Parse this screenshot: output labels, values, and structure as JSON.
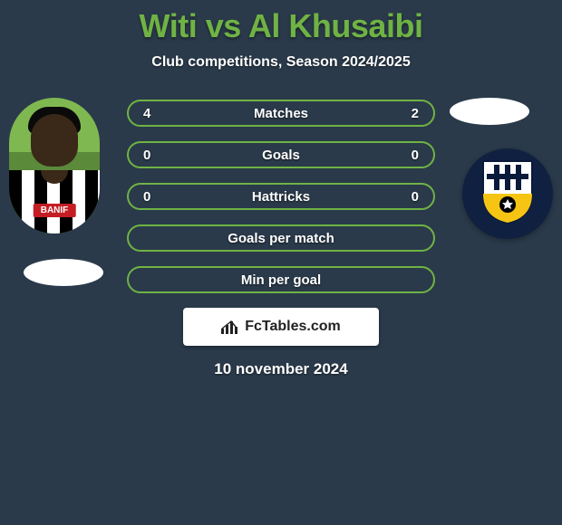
{
  "title": {
    "player_left": "Witi",
    "vs": " vs ",
    "player_right": "Al Khusaibi",
    "color": "#6fb344",
    "fontsize": 36
  },
  "subtitle": "Club competitions, Season 2024/2025",
  "stats": {
    "row_border_color": "#6fb344",
    "row_border_width": 2,
    "row_bg": "transparent",
    "rows": [
      {
        "label": "Matches",
        "left": "4",
        "right": "2"
      },
      {
        "label": "Goals",
        "left": "0",
        "right": "0"
      },
      {
        "label": "Hattricks",
        "left": "0",
        "right": "0"
      },
      {
        "label": "Goals per match",
        "left": "",
        "right": ""
      },
      {
        "label": "Min per goal",
        "left": "",
        "right": ""
      }
    ]
  },
  "left_player": {
    "jersey_sponsor": "BANIF",
    "jersey_sponsor_bg": "#c41e24",
    "pitch_top": "#7fb850",
    "pitch_bottom": "#5a8a3a",
    "skin": "#3a2818",
    "hair": "#0a0a0a"
  },
  "right_badge": {
    "bg": "#102040",
    "shield_top": "#ffffff",
    "shield_stripes": "#0a1a3a",
    "shield_bottom": "#f6c514",
    "ball": "#000000"
  },
  "footer": {
    "brand": "FcTables.com",
    "brand_bg": "#ffffff",
    "date": "10 november 2024"
  },
  "colors": {
    "page_bg": "#2a3a4a",
    "text": "#ffffff",
    "accent": "#6fb344"
  }
}
